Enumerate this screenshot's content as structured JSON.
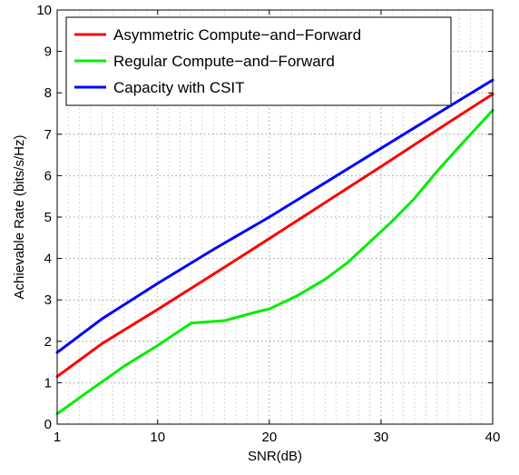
{
  "chart_data": {
    "type": "line",
    "xlabel": "SNR(dB)",
    "ylabel": "Achievable Rate (bits/s/Hz)",
    "xlim": [
      1,
      40
    ],
    "ylim": [
      0,
      10
    ],
    "xticks": [
      1,
      10,
      20,
      30,
      40
    ],
    "yticks": [
      0,
      1,
      2,
      3,
      4,
      5,
      6,
      7,
      8,
      9,
      10
    ],
    "xtick_labels": [
      "1",
      "10",
      "20",
      "30",
      "40"
    ],
    "ytick_labels": [
      "0",
      "1",
      "2",
      "3",
      "4",
      "5",
      "6",
      "7",
      "8",
      "9",
      "10"
    ],
    "grid": true,
    "legend_position": "top-left",
    "series": [
      {
        "name": "Asymmetric Compute−and−Forward",
        "color": "#ff0000",
        "x": [
          1,
          5,
          10,
          15,
          20,
          25,
          30,
          35,
          40
        ],
        "y": [
          1.15,
          1.94,
          2.77,
          3.62,
          4.48,
          5.35,
          6.22,
          7.1,
          7.97
        ]
      },
      {
        "name": "Regular Compute−and−Forward",
        "color": "#00ee00",
        "x": [
          1,
          4,
          7,
          10,
          13,
          16,
          19,
          20,
          22.5,
          25,
          27,
          29,
          31,
          33,
          35,
          37,
          40
        ],
        "y": [
          0.25,
          0.83,
          1.4,
          1.9,
          2.44,
          2.5,
          2.72,
          2.78,
          3.1,
          3.5,
          3.9,
          4.4,
          4.9,
          5.45,
          6.1,
          6.7,
          7.58
        ]
      },
      {
        "name": "Capacity with CSIT",
        "color": "#0000ff",
        "x": [
          1,
          5,
          10,
          15,
          20,
          25,
          30,
          35,
          40
        ],
        "y": [
          1.73,
          2.54,
          3.4,
          4.22,
          5.0,
          5.83,
          6.66,
          7.49,
          8.31
        ]
      }
    ]
  }
}
